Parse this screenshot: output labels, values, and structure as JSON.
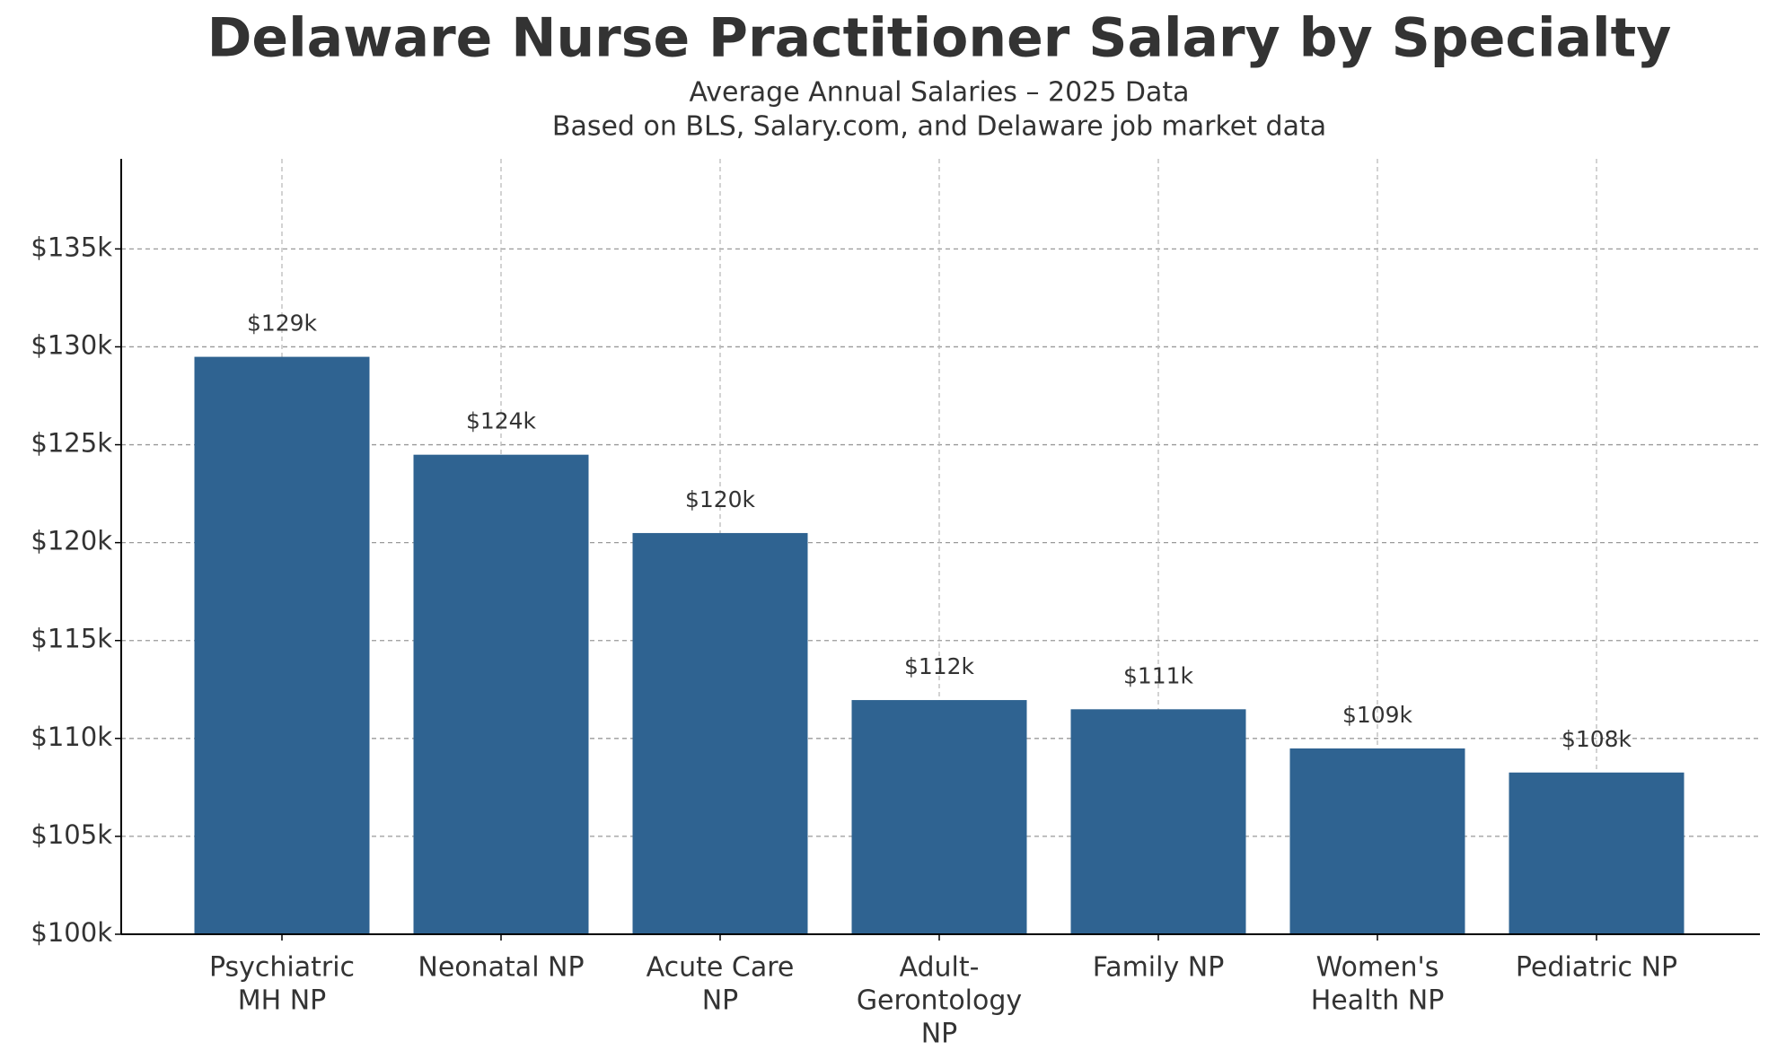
{
  "chart_data": {
    "type": "bar",
    "title": "Delaware Nurse Practitioner Salary by Specialty",
    "subtitle": [
      "Average Annual Salaries – 2025 Data",
      "Based on BLS, Salary.com, and Delaware job market data"
    ],
    "categories": [
      "Psychiatric\nMH NP",
      "Neonatal NP",
      "Acute Care\nNP",
      "Adult-\nGerontology\nNP",
      "Family NP",
      "Women's\nHealth NP",
      "Pediatric NP"
    ],
    "values": [
      129490,
      124490,
      120490,
      111960,
      111490,
      109490,
      108260
    ],
    "value_labels": [
      "$129k",
      "$124k",
      "$120k",
      "$112k",
      "$111k",
      "$109k",
      "$108k"
    ],
    "color": "#2f6391",
    "ylim": [
      100000,
      139600
    ],
    "yticks": [
      {
        "value": 100000,
        "label": "$100k"
      },
      {
        "value": 105000,
        "label": "$105k"
      },
      {
        "value": 110000,
        "label": "$110k"
      },
      {
        "value": 115000,
        "label": "$115k"
      },
      {
        "value": 120000,
        "label": "$120k"
      },
      {
        "value": 125000,
        "label": "$125k"
      },
      {
        "value": 130000,
        "label": "$130k"
      },
      {
        "value": 135000,
        "label": "$135k"
      }
    ],
    "grid": true
  }
}
